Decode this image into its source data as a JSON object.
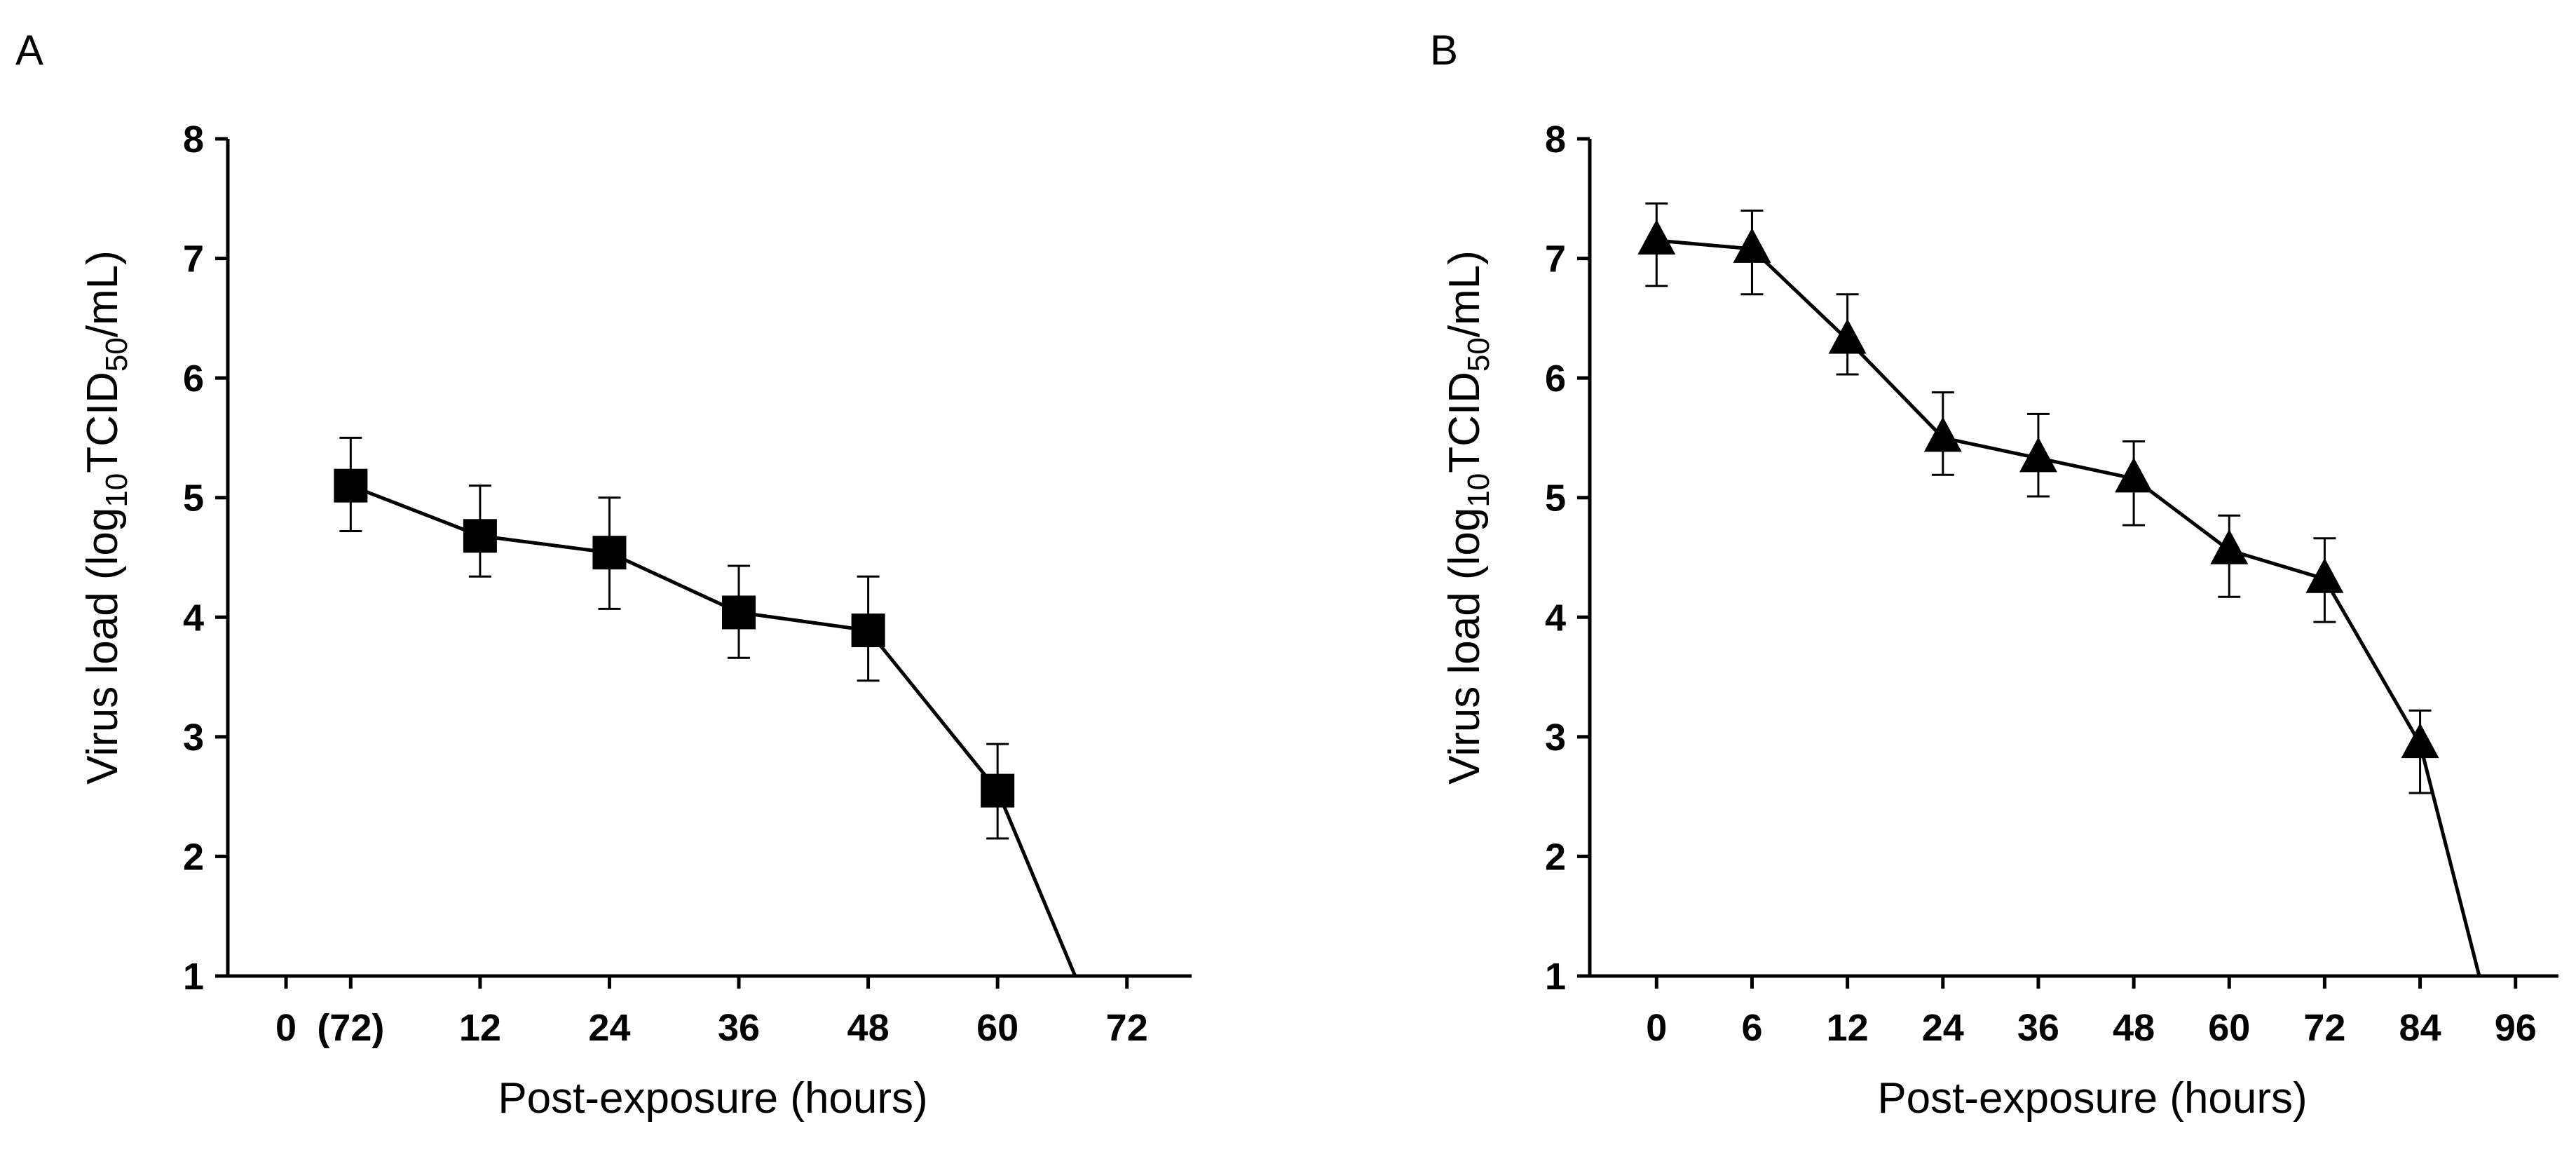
{
  "chart_data": [
    {
      "panel": "A",
      "type": "line",
      "xlabel": "Post-exposure (hours)",
      "ylabel": {
        "prefix": "Virus load (log",
        "sub1": "10",
        "mid": "TCID",
        "sub2": "50",
        "suffix": "/mL)"
      },
      "ylim": [
        1,
        8
      ],
      "yticks": [
        "1",
        "2",
        "3",
        "4",
        "5",
        "6",
        "7",
        "8"
      ],
      "xticks": [
        {
          "label": "0",
          "pos": -0.5
        },
        {
          "label": "(72)",
          "pos": 0
        },
        {
          "label": "12",
          "pos": 1
        },
        {
          "label": "24",
          "pos": 2
        },
        {
          "label": "36",
          "pos": 3
        },
        {
          "label": "48",
          "pos": 4
        },
        {
          "label": "60",
          "pos": 5
        },
        {
          "label": "72",
          "pos": 6
        }
      ],
      "xrange": [
        -0.95,
        6.5
      ],
      "marker": "square",
      "points": [
        {
          "x": 0,
          "y": 5.1,
          "lo": 4.72,
          "hi": 5.5
        },
        {
          "x": 1,
          "y": 4.68,
          "lo": 4.34,
          "hi": 5.1
        },
        {
          "x": 2,
          "y": 4.54,
          "lo": 4.07,
          "hi": 5.0
        },
        {
          "x": 3,
          "y": 4.04,
          "lo": 3.66,
          "hi": 4.43
        },
        {
          "x": 4,
          "y": 3.89,
          "lo": 3.47,
          "hi": 4.34
        },
        {
          "x": 5,
          "y": 2.55,
          "lo": 2.15,
          "hi": 2.94
        }
      ],
      "line_end": {
        "x": 5.6,
        "y": 1
      }
    },
    {
      "panel": "B",
      "type": "line",
      "xlabel": "Post-exposure (hours)",
      "ylabel": {
        "prefix": "Virus load (log",
        "sub1": "10",
        "mid": "TCID",
        "sub2": "50",
        "suffix": "/mL)"
      },
      "ylim": [
        1,
        8
      ],
      "yticks": [
        "1",
        "2",
        "3",
        "4",
        "5",
        "6",
        "7",
        "8"
      ],
      "xticks": [
        {
          "label": "0",
          "pos": 0
        },
        {
          "label": "6",
          "pos": 1
        },
        {
          "label": "12",
          "pos": 2
        },
        {
          "label": "24",
          "pos": 3
        },
        {
          "label": "36",
          "pos": 4
        },
        {
          "label": "48",
          "pos": 5
        },
        {
          "label": "60",
          "pos": 6
        },
        {
          "label": "72",
          "pos": 7
        },
        {
          "label": "84",
          "pos": 8
        },
        {
          "label": "96",
          "pos": 9
        }
      ],
      "xrange": [
        -0.7,
        9.45
      ],
      "marker": "triangle",
      "points": [
        {
          "x": 0,
          "y": 7.15,
          "lo": 6.77,
          "hi": 7.46
        },
        {
          "x": 1,
          "y": 7.08,
          "lo": 6.7,
          "hi": 7.4
        },
        {
          "x": 2,
          "y": 6.32,
          "lo": 6.03,
          "hi": 6.7
        },
        {
          "x": 3,
          "y": 5.5,
          "lo": 5.19,
          "hi": 5.88
        },
        {
          "x": 4,
          "y": 5.33,
          "lo": 5.01,
          "hi": 5.7
        },
        {
          "x": 5,
          "y": 5.16,
          "lo": 4.77,
          "hi": 5.47
        },
        {
          "x": 6,
          "y": 4.56,
          "lo": 4.17,
          "hi": 4.85
        },
        {
          "x": 7,
          "y": 4.32,
          "lo": 3.96,
          "hi": 4.66
        },
        {
          "x": 8,
          "y": 2.94,
          "lo": 2.53,
          "hi": 3.22
        },
        {
          "x": 8.62,
          "y": 1,
          "terminal": true
        }
      ],
      "line_end": {
        "x": 8.62,
        "y": 1
      }
    }
  ]
}
